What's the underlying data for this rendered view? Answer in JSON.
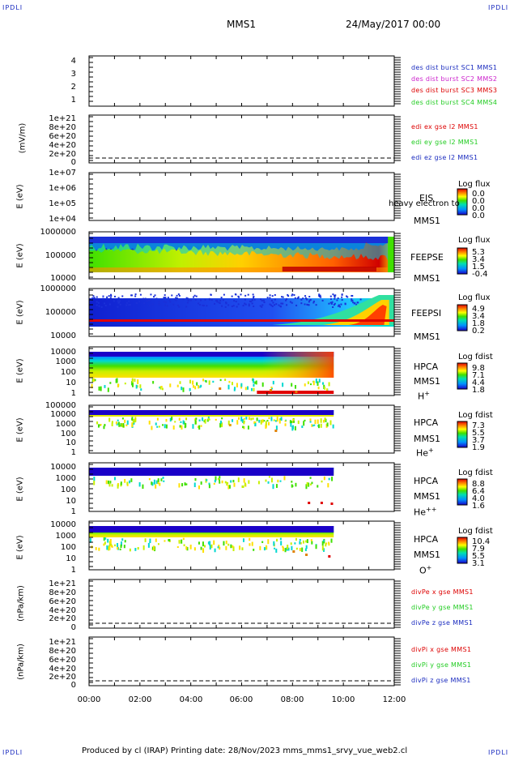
{
  "corners": {
    "tl": "IPDLI",
    "tr": "IPDLI",
    "bl": "IPDLI",
    "br": "IPDLI"
  },
  "header": {
    "mission": "MMS1",
    "date": "24/May/2017 00:00"
  },
  "colors": {
    "blue": "#1a2bbf",
    "magenta": "#cc22cc",
    "red": "#dd0000",
    "green": "#22cc22"
  },
  "x_ticks": [
    "00:00",
    "02:00",
    "04:00",
    "06:00",
    "08:00",
    "10:00",
    "12:00"
  ],
  "footer": "Produced by cl (IRAP)    Printing date: 28/Nov/2023    mms_mms1_srvy_vue_web2.cl",
  "panels": {
    "p1": {
      "yticks": [
        "4",
        "3",
        "2",
        "1"
      ],
      "legend": [
        "des dist burst SC1 MMS1",
        "des dist burst SC2 MMS2",
        "des dist burst SC3 MMS3",
        "des dist burst SC4 MMS4"
      ]
    },
    "p2": {
      "ylabel": "(mV/m)",
      "yticks": [
        "1e+21",
        "8e+20",
        "6e+20",
        "4e+20",
        "2e+20",
        "0"
      ],
      "legend": [
        "edi ex gse l2 MMS1",
        "edi ey gse l2 MMS1",
        "edi ez gse l2 MMS1"
      ]
    },
    "p3": {
      "ylabel": "E (eV)",
      "yticks": [
        "1e+07",
        "1e+06",
        "1e+05",
        "1e+04"
      ],
      "inst": "EIS",
      "note": "heavy electron to",
      "sc": "MMS1",
      "cb_title": "Log flux",
      "cb_vals": [
        "0.0",
        "0.0",
        "0.0",
        "0.0"
      ]
    },
    "p4": {
      "ylabel": "E (eV)",
      "yticks": [
        "1000000",
        "100000",
        "10000"
      ],
      "inst": "FEEPSE",
      "sc": "MMS1",
      "cb_title": "Log flux",
      "cb_vals": [
        "5.3",
        "3.4",
        "1.5",
        "-0.4"
      ]
    },
    "p5": {
      "ylabel": "E (eV)",
      "yticks": [
        "1000000",
        "100000",
        "10000"
      ],
      "inst": "FEEPSI",
      "sc": "MMS1",
      "cb_title": "Log flux",
      "cb_vals": [
        "4.9",
        "3.4",
        "1.8",
        "0.2"
      ]
    },
    "p6": {
      "ylabel": "E (eV)",
      "yticks": [
        "10000",
        "1000",
        "100",
        "10",
        "1"
      ],
      "inst": "HPCA",
      "sc": "MMS1",
      "species": "H",
      "charge": "+",
      "cb_title": "Log fdist",
      "cb_vals": [
        "9.8",
        "7.1",
        "4.4",
        "1.8"
      ]
    },
    "p7": {
      "ylabel": "E (eV)",
      "yticks": [
        "100000",
        "10000",
        "1000",
        "100",
        "10",
        "1"
      ],
      "inst": "HPCA",
      "sc": "MMS1",
      "species": "He",
      "charge": "+",
      "cb_title": "Log fdist",
      "cb_vals": [
        "7.3",
        "5.5",
        "3.7",
        "1.9"
      ]
    },
    "p8": {
      "ylabel": "E (eV)",
      "yticks": [
        "10000",
        "1000",
        "100",
        "10",
        "1"
      ],
      "inst": "HPCA",
      "sc": "MMS1",
      "species": "He",
      "charge": "++",
      "cb_title": "Log fdist",
      "cb_vals": [
        "8.8",
        "6.4",
        "4.0",
        "1.6"
      ]
    },
    "p9": {
      "ylabel": "E (eV)",
      "yticks": [
        "10000",
        "1000",
        "100",
        "10",
        "1"
      ],
      "inst": "HPCA",
      "sc": "MMS1",
      "species": "O",
      "charge": "+",
      "cb_title": "Log fdist",
      "cb_vals": [
        "10.4",
        "7.9",
        "5.5",
        "3.1"
      ]
    },
    "p10": {
      "ylabel": "(nPa/km)",
      "yticks": [
        "1e+21",
        "8e+20",
        "6e+20",
        "4e+20",
        "2e+20",
        "0"
      ],
      "legend": [
        "divPe x gse MMS1",
        "divPe y gse MMS1",
        "divPe z gse MMS1"
      ]
    },
    "p11": {
      "ylabel": "(nPa/km)",
      "yticks": [
        "1e+21",
        "8e+20",
        "6e+20",
        "4e+20",
        "2e+20",
        "0"
      ],
      "legend": [
        "divPi x gse MMS1",
        "divPi y gse MMS1",
        "divPi z gse MMS1"
      ]
    }
  },
  "chart_data": [
    {
      "type": "line",
      "title": "",
      "series_labels": [
        "des dist burst SC1 MMS1",
        "des dist burst SC2 MMS2",
        "des dist burst SC3 MMS3",
        "des dist burst SC4 MMS4"
      ],
      "ylim": [
        0.5,
        4.5
      ],
      "xlim": [
        "00:00",
        "12:00"
      ],
      "data": "empty"
    },
    {
      "type": "line",
      "ylabel": "(mV/m)",
      "ylim": [
        0,
        1e+21
      ],
      "series_labels": [
        "edi ex gse l2 MMS1",
        "edi ey gse l2 MMS1",
        "edi ez gse l2 MMS1"
      ],
      "data": "empty"
    },
    {
      "type": "heatmap",
      "ylabel": "E (eV)",
      "yscale": "log",
      "ylim": [
        10000.0,
        10000000.0
      ],
      "colorbar": [
        0.0,
        0.0,
        0.0,
        0.0
      ],
      "data": "empty"
    },
    {
      "type": "heatmap",
      "ylabel": "E (eV)",
      "yscale": "log",
      "ylim": [
        10000.0,
        1000000.0
      ],
      "colorbar": [
        5.3,
        3.4,
        1.5,
        -0.4
      ],
      "coverage": [
        "00:00",
        "12:00"
      ]
    },
    {
      "type": "heatmap",
      "ylabel": "E (eV)",
      "yscale": "log",
      "ylim": [
        10000.0,
        1000000.0
      ],
      "colorbar": [
        4.9,
        3.4,
        1.8,
        0.2
      ],
      "coverage": [
        "00:00",
        "12:00"
      ]
    },
    {
      "type": "heatmap",
      "ylabel": "E (eV)",
      "yscale": "log",
      "ylim": [
        1,
        30000.0
      ],
      "colorbar": [
        9.8,
        7.1,
        4.4,
        1.8
      ],
      "coverage": [
        "00:00",
        "09:40"
      ]
    },
    {
      "type": "heatmap",
      "ylabel": "E (eV)",
      "yscale": "log",
      "ylim": [
        1,
        100000.0
      ],
      "colorbar": [
        7.3,
        5.5,
        3.7,
        1.9
      ],
      "coverage": [
        "00:00",
        "09:40"
      ]
    },
    {
      "type": "heatmap",
      "ylabel": "E (eV)",
      "yscale": "log",
      "ylim": [
        1,
        30000.0
      ],
      "colorbar": [
        8.8,
        6.4,
        4.0,
        1.6
      ],
      "coverage": [
        "00:00",
        "09:40"
      ]
    },
    {
      "type": "heatmap",
      "ylabel": "E (eV)",
      "yscale": "log",
      "ylim": [
        1,
        30000.0
      ],
      "colorbar": [
        10.4,
        7.9,
        5.5,
        3.1
      ],
      "coverage": [
        "00:00",
        "09:40"
      ]
    },
    {
      "type": "line",
      "ylabel": "(nPa/km)",
      "ylim": [
        0,
        1e+21
      ],
      "series_labels": [
        "divPe x gse MMS1",
        "divPe y gse MMS1",
        "divPe z gse MMS1"
      ],
      "data": "empty"
    },
    {
      "type": "line",
      "ylabel": "(nPa/km)",
      "ylim": [
        0,
        1e+21
      ],
      "series_labels": [
        "divPi x gse MMS1",
        "divPi y gse MMS1",
        "divPi z gse MMS1"
      ],
      "data": "empty"
    }
  ]
}
